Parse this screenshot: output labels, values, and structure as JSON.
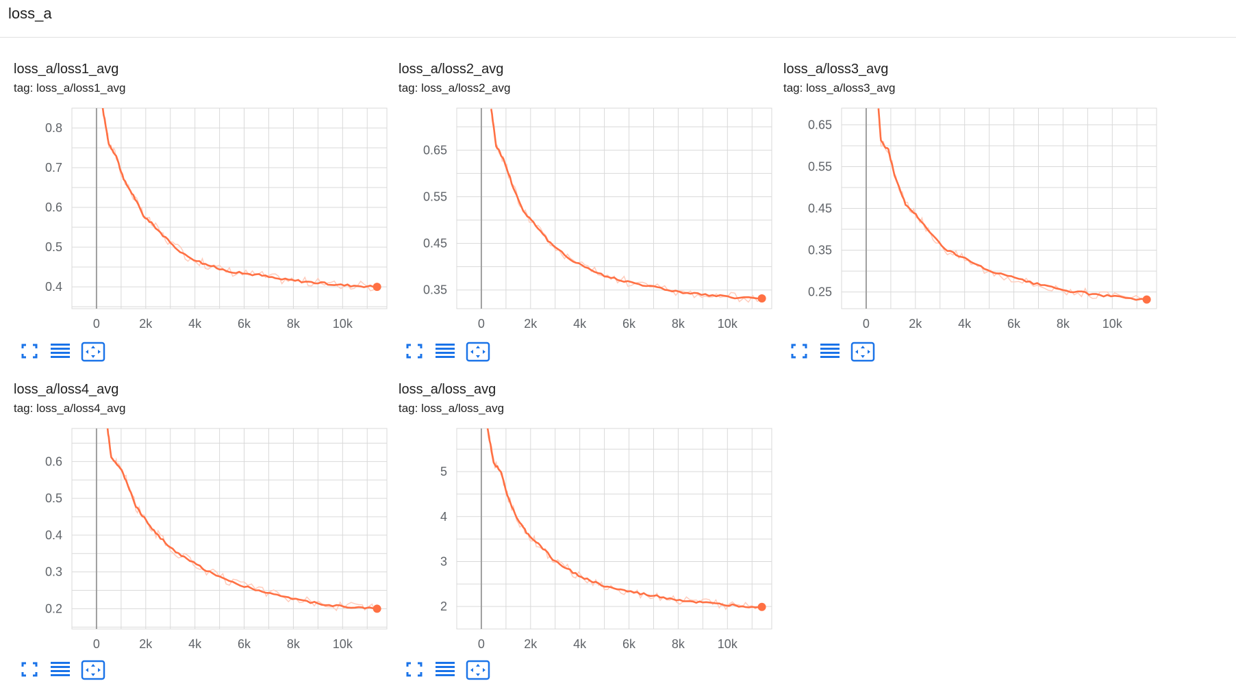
{
  "group": {
    "title": "loss_a"
  },
  "colors": {
    "series": "#ff7043",
    "series_raw": "#ffccbc",
    "grid": "#d9d9d9",
    "axis_zero": "#9e9e9e",
    "button": "#1a73e8"
  },
  "icons": {
    "fullscreen": "fullscreen-icon",
    "data_table": "list-icon",
    "fit_domain": "fit-domain-icon"
  },
  "cards": [
    {
      "title": "loss_a/loss1_avg",
      "tag": "tag: loss_a/loss1_avg"
    },
    {
      "title": "loss_a/loss2_avg",
      "tag": "tag: loss_a/loss2_avg"
    },
    {
      "title": "loss_a/loss3_avg",
      "tag": "tag: loss_a/loss3_avg"
    },
    {
      "title": "loss_a/loss4_avg",
      "tag": "tag: loss_a/loss4_avg"
    },
    {
      "title": "loss_a/loss_avg",
      "tag": "tag: loss_a/loss_avg"
    }
  ],
  "chart_data": [
    {
      "type": "line",
      "title": "loss_a/loss1_avg",
      "xlim": [
        -1000,
        11800
      ],
      "ylim": [
        0.345,
        0.85
      ],
      "x_ticks": [
        0,
        2000,
        4000,
        6000,
        8000,
        10000
      ],
      "x_tick_labels": [
        "0",
        "2k",
        "4k",
        "6k",
        "8k",
        "10k"
      ],
      "y_ticks": [
        0.4,
        0.5,
        0.6,
        0.7,
        0.8
      ],
      "y_tick_labels": [
        "0.4",
        "0.5",
        "0.6",
        "0.7",
        "0.8"
      ],
      "grid": true,
      "x": [
        250,
        500,
        800,
        1100,
        1500,
        1900,
        2400,
        3000,
        3600,
        4300,
        5000,
        5800,
        6600,
        7400,
        8200,
        9000,
        9800,
        10600,
        11400
      ],
      "y": [
        0.85,
        0.76,
        0.73,
        0.67,
        0.63,
        0.58,
        0.55,
        0.51,
        0.48,
        0.46,
        0.445,
        0.435,
        0.43,
        0.42,
        0.415,
        0.41,
        0.405,
        0.403,
        0.4
      ]
    },
    {
      "type": "line",
      "title": "loss_a/loss2_avg",
      "xlim": [
        -1000,
        11800
      ],
      "ylim": [
        0.31,
        0.74
      ],
      "x_ticks": [
        0,
        2000,
        4000,
        6000,
        8000,
        10000
      ],
      "x_tick_labels": [
        "0",
        "2k",
        "4k",
        "6k",
        "8k",
        "10k"
      ],
      "y_ticks": [
        0.35,
        0.45,
        0.55,
        0.65
      ],
      "y_tick_labels": [
        "0.35",
        "0.45",
        "0.55",
        "0.65"
      ],
      "grid": true,
      "x": [
        400,
        600,
        900,
        1300,
        1700,
        2200,
        2800,
        3500,
        4200,
        5000,
        5800,
        6700,
        7600,
        8500,
        9400,
        10300,
        11400
      ],
      "y": [
        0.74,
        0.66,
        0.63,
        0.57,
        0.52,
        0.49,
        0.45,
        0.42,
        0.4,
        0.38,
        0.37,
        0.36,
        0.35,
        0.343,
        0.338,
        0.334,
        0.332
      ]
    },
    {
      "type": "line",
      "title": "loss_a/loss3_avg",
      "xlim": [
        -1000,
        11800
      ],
      "ylim": [
        0.21,
        0.69
      ],
      "x_ticks": [
        0,
        2000,
        4000,
        6000,
        8000,
        10000
      ],
      "x_tick_labels": [
        "0",
        "2k",
        "4k",
        "6k",
        "8k",
        "10k"
      ],
      "y_ticks": [
        0.25,
        0.35,
        0.45,
        0.55,
        0.65
      ],
      "y_tick_labels": [
        "0.25",
        "0.35",
        "0.45",
        "0.55",
        "0.65"
      ],
      "grid": true,
      "x": [
        500,
        600,
        900,
        1200,
        1600,
        2100,
        2600,
        3300,
        4000,
        4800,
        5600,
        6500,
        7400,
        8300,
        9200,
        10100,
        11400
      ],
      "y": [
        0.69,
        0.61,
        0.59,
        0.52,
        0.46,
        0.43,
        0.39,
        0.35,
        0.33,
        0.305,
        0.29,
        0.275,
        0.262,
        0.252,
        0.245,
        0.238,
        0.232
      ]
    },
    {
      "type": "line",
      "title": "loss_a/loss4_avg",
      "xlim": [
        -1000,
        11800
      ],
      "ylim": [
        0.145,
        0.69
      ],
      "x_ticks": [
        0,
        2000,
        4000,
        6000,
        8000,
        10000
      ],
      "x_tick_labels": [
        "0",
        "2k",
        "4k",
        "6k",
        "8k",
        "10k"
      ],
      "y_ticks": [
        0.2,
        0.3,
        0.4,
        0.5,
        0.6
      ],
      "y_tick_labels": [
        "0.2",
        "0.3",
        "0.4",
        "0.5",
        "0.6"
      ],
      "grid": true,
      "x": [
        450,
        600,
        900,
        1200,
        1600,
        2000,
        2500,
        3100,
        3800,
        4600,
        5400,
        6300,
        7200,
        8100,
        9000,
        9900,
        10800,
        11400
      ],
      "y": [
        0.69,
        0.61,
        0.59,
        0.55,
        0.48,
        0.44,
        0.4,
        0.36,
        0.33,
        0.3,
        0.275,
        0.255,
        0.24,
        0.225,
        0.215,
        0.207,
        0.202,
        0.2
      ]
    },
    {
      "type": "line",
      "title": "loss_a/loss_avg",
      "xlim": [
        -1000,
        11800
      ],
      "ylim": [
        1.5,
        5.96
      ],
      "x_ticks": [
        0,
        2000,
        4000,
        6000,
        8000,
        10000
      ],
      "x_tick_labels": [
        "0",
        "2k",
        "4k",
        "6k",
        "8k",
        "10k"
      ],
      "y_ticks": [
        2,
        3,
        4,
        5
      ],
      "y_tick_labels": [
        "2",
        "3",
        "4",
        "5"
      ],
      "grid": true,
      "x": [
        250,
        500,
        800,
        1100,
        1500,
        1900,
        2400,
        3000,
        3600,
        4300,
        5000,
        5800,
        6600,
        7400,
        8200,
        9000,
        9800,
        10600,
        11400
      ],
      "y": [
        5.96,
        5.2,
        5.0,
        4.4,
        3.9,
        3.6,
        3.35,
        3.0,
        2.8,
        2.6,
        2.45,
        2.35,
        2.27,
        2.2,
        2.13,
        2.08,
        2.04,
        2.01,
        1.99
      ]
    }
  ]
}
